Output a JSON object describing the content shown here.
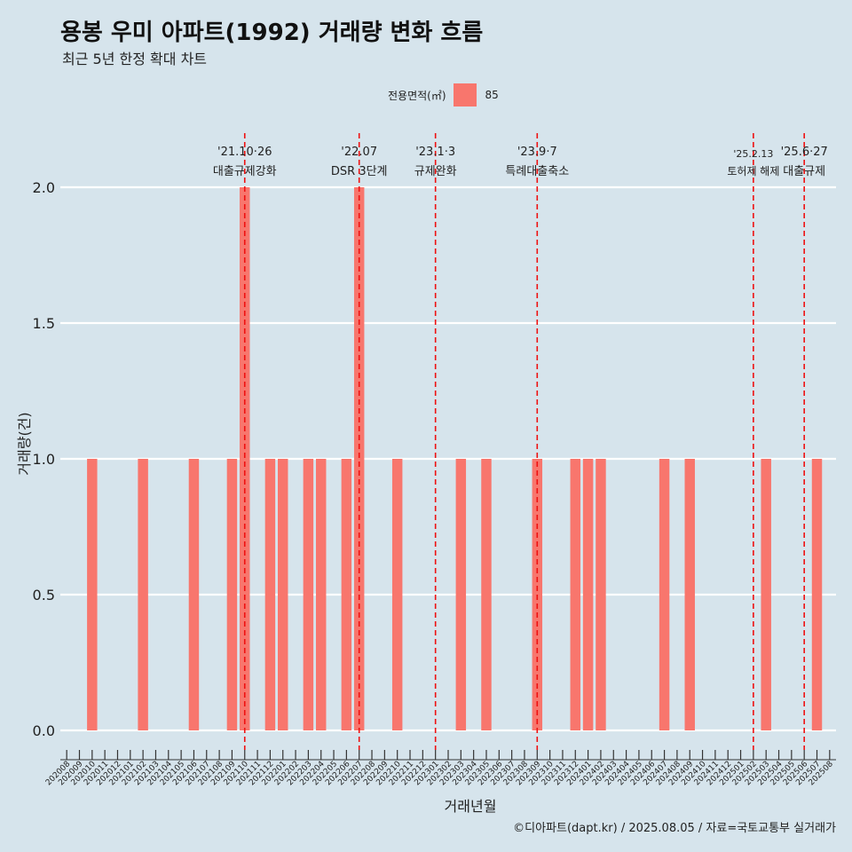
{
  "chart_data": {
    "type": "bar",
    "title": "용봉 우미 아파트(1992) 거래량 변화 흐름",
    "subtitle": "최근 5년 한정 확대 차트",
    "xlabel": "거래년월",
    "ylabel": "거래량(건)",
    "ylim": [
      0,
      2
    ],
    "yticks": [
      "0.0",
      "0.5",
      "1.0",
      "1.5",
      "2.0"
    ],
    "legend_title": "전용면적(㎡)",
    "legend_placement": "top-center",
    "grid": true,
    "categories": [
      "202008",
      "202009",
      "202010",
      "202011",
      "202012",
      "202101",
      "202102",
      "202103",
      "202104",
      "202105",
      "202106",
      "202107",
      "202108",
      "202109",
      "202110",
      "202111",
      "202112",
      "202201",
      "202202",
      "202203",
      "202204",
      "202205",
      "202206",
      "202207",
      "202208",
      "202209",
      "202210",
      "202211",
      "202212",
      "202301",
      "202302",
      "202303",
      "202304",
      "202305",
      "202306",
      "202307",
      "202308",
      "202309",
      "202310",
      "202311",
      "202312",
      "202401",
      "202402",
      "202403",
      "202404",
      "202405",
      "202406",
      "202407",
      "202408",
      "202409",
      "202410",
      "202411",
      "202412",
      "202501",
      "202502",
      "202503",
      "202504",
      "202505",
      "202506",
      "202507",
      "202508"
    ],
    "series": [
      {
        "name": "85",
        "color": "#f8766d",
        "values": [
          0,
          0,
          1,
          0,
          0,
          0,
          1,
          0,
          0,
          0,
          1,
          0,
          0,
          1,
          2,
          0,
          1,
          1,
          0,
          1,
          1,
          0,
          1,
          2,
          0,
          0,
          1,
          0,
          0,
          0,
          0,
          1,
          0,
          1,
          0,
          0,
          0,
          1,
          0,
          0,
          1,
          1,
          1,
          0,
          0,
          0,
          0,
          1,
          0,
          1,
          0,
          0,
          0,
          0,
          0,
          1,
          0,
          0,
          0,
          1,
          0
        ]
      }
    ],
    "events": [
      {
        "category": "202110",
        "date": "'21.10·26",
        "label": "대출규제강화"
      },
      {
        "category": "202207",
        "date": "'22.07",
        "label": "DSR 3단계"
      },
      {
        "category": "202301",
        "date": "'23.1·3",
        "label": "규제완화"
      },
      {
        "category": "202309",
        "date": "'23.9·7",
        "label": "특례대출축소"
      },
      {
        "category": "202502",
        "date": "'25.2.13",
        "label": "토허제 해제"
      },
      {
        "category": "202506",
        "date": "'25.6·27",
        "label": "대출규제"
      }
    ],
    "event_line_color": "#ee1111"
  },
  "caption": "©디아파트(dapt.kr) / 2025.08.05 / 자료=국토교통부 실거래가"
}
